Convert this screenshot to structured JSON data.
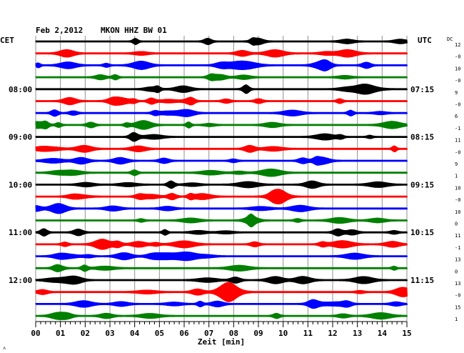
{
  "header": {
    "date": "Feb 2,2012",
    "station": "MKON HHZ BW 01"
  },
  "left_axis_label": "CET",
  "right_axis_label": "UTC",
  "dc_label": "DC",
  "footer_mark": "˄",
  "chart_data": {
    "type": "line",
    "title": "Feb 2,2012   MKON HHZ BW 01",
    "xlabel": "Zeit [min]",
    "ylabel": "",
    "xlim": [
      0,
      15
    ],
    "x_ticks": [
      "00",
      "01",
      "02",
      "03",
      "04",
      "05",
      "06",
      "07",
      "08",
      "09",
      "10",
      "11",
      "12",
      "13",
      "14",
      "15"
    ],
    "grid": true,
    "traces_count": 24,
    "trace_colors": [
      "#000000",
      "#ff0000",
      "#0000ff",
      "#008000"
    ],
    "cet_labels": [
      {
        "trace": 4,
        "label": "08:00"
      },
      {
        "trace": 8,
        "label": "09:00"
      },
      {
        "trace": 12,
        "label": "10:00"
      },
      {
        "trace": 16,
        "label": "11:00"
      },
      {
        "trace": 20,
        "label": "12:00"
      }
    ],
    "utc_labels": [
      {
        "trace": 4,
        "label": "07:15"
      },
      {
        "trace": 8,
        "label": "08:15"
      },
      {
        "trace": 12,
        "label": "09:15"
      },
      {
        "trace": 16,
        "label": "10:15"
      },
      {
        "trace": 20,
        "label": "11:15"
      }
    ],
    "dc_offsets": [
      "12",
      "-0",
      "10",
      "-0",
      "9",
      "-0",
      "6",
      "-1",
      "11",
      "-0",
      "9",
      "1",
      "10",
      "-0",
      "10",
      "0",
      "11",
      "-1",
      "13",
      "0",
      "13",
      "-0",
      "15",
      "1"
    ]
  }
}
